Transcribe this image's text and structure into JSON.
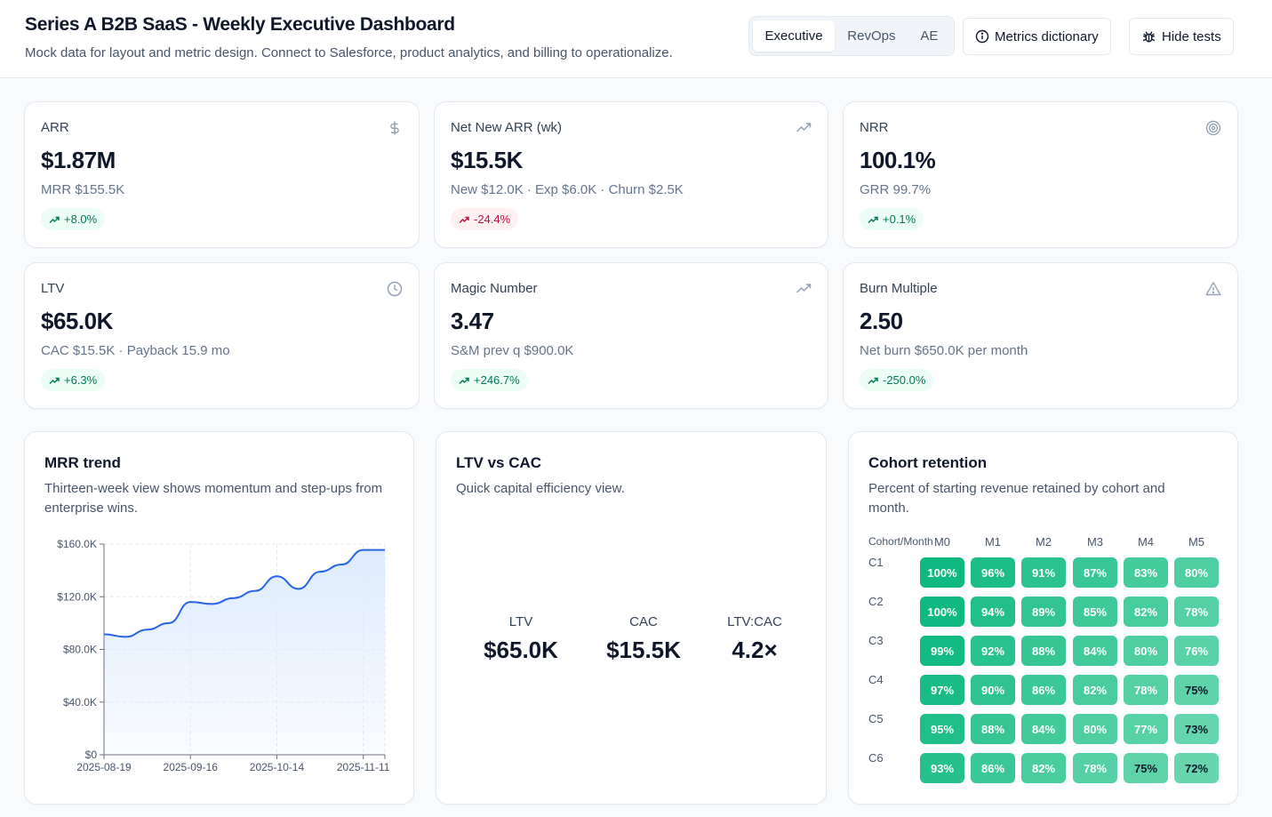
{
  "header": {
    "title": "Series A B2B SaaS - Weekly Executive Dashboard",
    "subtitle": "Mock data for layout and metric design. Connect to Salesforce, product analytics, and billing to operationalize.",
    "tabs": [
      "Executive",
      "RevOps",
      "AE"
    ],
    "active_tab": "Executive",
    "metrics_dictionary_label": "Metrics dictionary",
    "hide_tests_label": "Hide tests"
  },
  "kpis": [
    {
      "label": "ARR",
      "value": "$1.87M",
      "sub": "MRR $155.5K",
      "delta": "+8.0%",
      "trend": "up",
      "icon": "dollar-icon"
    },
    {
      "label": "Net New ARR (wk)",
      "value": "$15.5K",
      "sub": "New $12.0K · Exp $6.0K · Churn $2.5K",
      "delta": "-24.4%",
      "trend": "down",
      "icon": "trending-up-icon"
    },
    {
      "label": "NRR",
      "value": "100.1%",
      "sub": "GRR 99.7%",
      "delta": "+0.1%",
      "trend": "up",
      "icon": "target-icon"
    },
    {
      "label": "LTV",
      "value": "$65.0K",
      "sub": "CAC $15.5K · Payback 15.9 mo",
      "delta": "+6.3%",
      "trend": "up",
      "icon": "clock-icon"
    },
    {
      "label": "Magic Number",
      "value": "3.47",
      "sub": "S&M prev q $900.0K",
      "delta": "+246.7%",
      "trend": "up",
      "icon": "trending-up-icon"
    },
    {
      "label": "Burn Multiple",
      "value": "2.50",
      "sub": "Net burn $650.0K per month",
      "delta": "-250.0%",
      "trend": "up",
      "icon": "warning-icon"
    }
  ],
  "mrr_panel": {
    "title": "MRR trend",
    "description": "Thirteen-week view shows momentum and step-ups from enterprise wins."
  },
  "ltv_panel": {
    "title": "LTV vs CAC",
    "description": "Quick capital efficiency view.",
    "items": [
      {
        "label": "LTV",
        "value": "$65.0K"
      },
      {
        "label": "CAC",
        "value": "$15.5K"
      },
      {
        "label": "LTV:CAC",
        "value": "4.2×"
      }
    ]
  },
  "cohort_panel": {
    "title": "Cohort retention",
    "description": "Percent of starting revenue retained by cohort and month.",
    "corner_label": "Cohort/Month",
    "months": [
      "M0",
      "M1",
      "M2",
      "M3",
      "M4",
      "M5"
    ],
    "cohorts": [
      {
        "name": "C1",
        "values": [
          100,
          96,
          91,
          87,
          83,
          80
        ]
      },
      {
        "name": "C2",
        "values": [
          100,
          94,
          89,
          85,
          82,
          78
        ]
      },
      {
        "name": "C3",
        "values": [
          99,
          92,
          88,
          84,
          80,
          76
        ]
      },
      {
        "name": "C4",
        "values": [
          97,
          90,
          86,
          82,
          78,
          75
        ]
      },
      {
        "name": "C5",
        "values": [
          95,
          88,
          84,
          80,
          77,
          73
        ]
      },
      {
        "name": "C6",
        "values": [
          93,
          86,
          82,
          78,
          75,
          72
        ]
      }
    ]
  },
  "chart_data": {
    "type": "area",
    "title": "MRR trend",
    "xlabel": "",
    "ylabel": "",
    "x": [
      "2025-08-19",
      "2025-08-26",
      "2025-09-02",
      "2025-09-09",
      "2025-09-16",
      "2025-09-23",
      "2025-09-30",
      "2025-10-07",
      "2025-10-14",
      "2025-10-21",
      "2025-10-28",
      "2025-11-04",
      "2025-11-11",
      "2025-11-14"
    ],
    "values": [
      91.5,
      89.5,
      95.0,
      100.0,
      116.0,
      114.5,
      119.0,
      124.5,
      135.5,
      126.0,
      139.0,
      144.5,
      155.5,
      155.5
    ],
    "x_tick_labels": [
      "2025-08-19",
      "2025-09-16",
      "2025-10-14",
      "2025-11-11"
    ],
    "y_tick_labels": [
      "$0",
      "$40.0K",
      "$80.0K",
      "$120.0K",
      "$160.0K"
    ],
    "y_ticks": [
      0,
      40,
      80,
      120,
      160
    ],
    "ylim": [
      0,
      160
    ],
    "unit": "$K",
    "grid": true,
    "colors": {
      "line": "#2563eb",
      "fill": "#dbeafe"
    }
  },
  "colors": {
    "up_pill_bg": "#ecfdf5",
    "up_pill_text": "#047857",
    "down_pill_bg": "#fff1f2",
    "down_pill_text": "#be123c",
    "accent": "#2563eb"
  }
}
